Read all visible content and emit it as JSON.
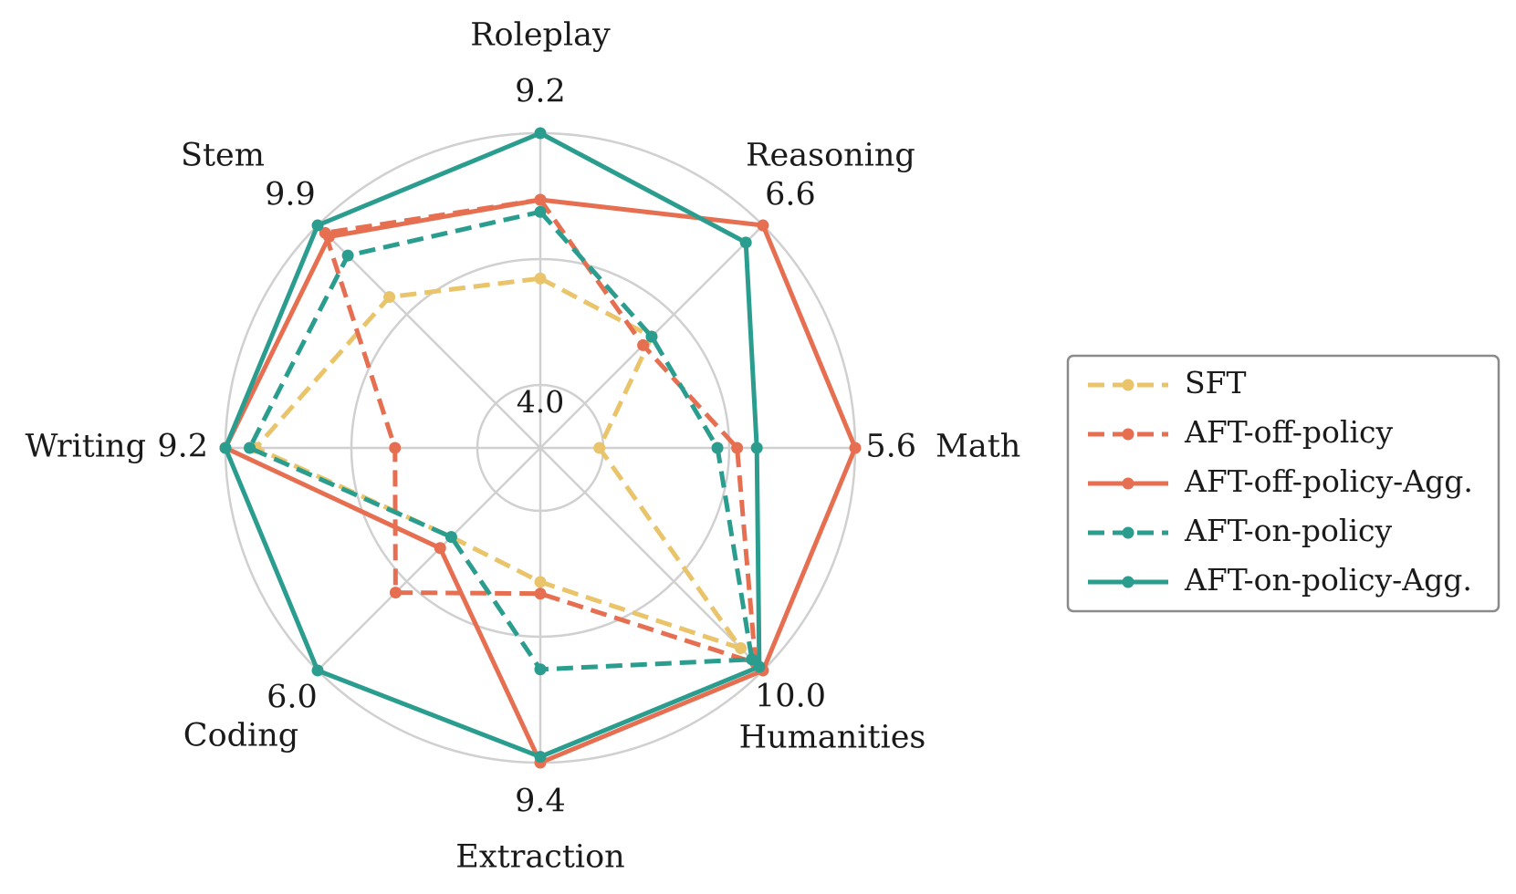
{
  "chart_data": {
    "type": "radar",
    "axes": [
      "Roleplay",
      "Reasoning",
      "Math",
      "Humanities",
      "Extraction",
      "Coding",
      "Writing",
      "Stem"
    ],
    "axis_max_labels": [
      "9.2",
      "6.6",
      "5.6",
      "10.0",
      "9.4",
      "6.0",
      "9.2",
      "9.9"
    ],
    "axis_max": [
      9.2,
      6.6,
      5.6,
      10.0,
      9.4,
      6.0,
      9.2,
      9.9
    ],
    "center_label": "4.0",
    "center_min": 4.0,
    "grid": true,
    "legend_position": "right",
    "series": [
      {
        "name": "SFT",
        "color": "#e9c46a",
        "style": "dashed",
        "values": [
          6.8,
          5.3,
          4.3,
          9.4,
          6.3,
          4.8,
          8.7,
          8.0
        ]
      },
      {
        "name": "AFT-off-policy",
        "color": "#e76f51",
        "style": "dashed",
        "values": [
          8.1,
          5.2,
          5.0,
          9.8,
          6.5,
          5.3,
          6.4,
          9.7
        ]
      },
      {
        "name": "AFT-off-policy-Agg.",
        "color": "#e76f51",
        "style": "solid",
        "values": [
          8.1,
          6.6,
          5.6,
          10.0,
          9.4,
          4.9,
          9.2,
          9.6
        ]
      },
      {
        "name": "AFT-on-policy",
        "color": "#2a9d8f",
        "style": "dashed",
        "values": [
          7.9,
          5.3,
          4.9,
          9.7,
          7.8,
          4.8,
          8.8,
          9.1
        ]
      },
      {
        "name": "AFT-on-policy-Agg.",
        "color": "#2a9d8f",
        "style": "solid",
        "values": [
          9.2,
          6.4,
          5.1,
          9.9,
          9.3,
          6.0,
          9.2,
          9.9
        ]
      }
    ]
  }
}
